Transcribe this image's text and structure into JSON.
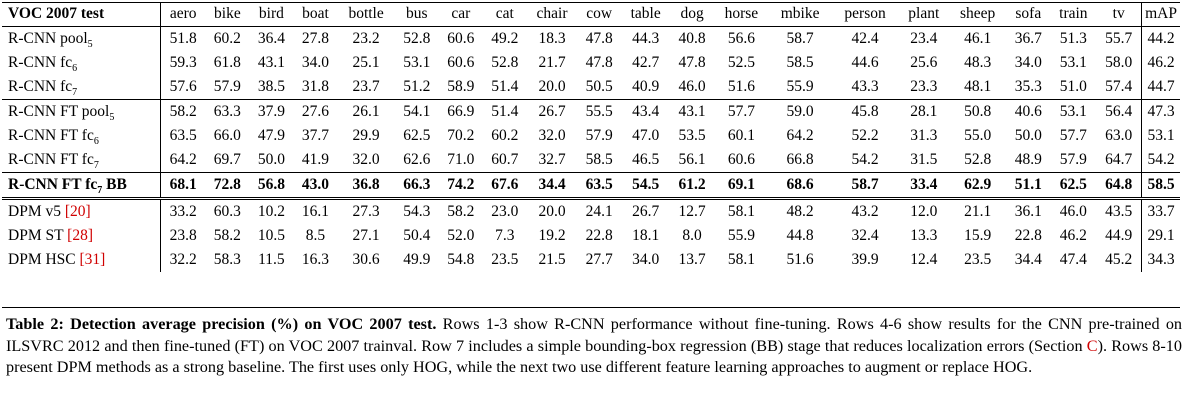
{
  "table": {
    "header_label": "VOC 2007 test",
    "classes": [
      "aero",
      "bike",
      "bird",
      "boat",
      "bottle",
      "bus",
      "car",
      "cat",
      "chair",
      "cow",
      "table",
      "dog",
      "horse",
      "mbike",
      "person",
      "plant",
      "sheep",
      "sofa",
      "train",
      "tv"
    ],
    "map_label": "mAP",
    "rows": [
      {
        "method": "R-CNN pool",
        "sub": "5",
        "suffix": "",
        "ref": "",
        "values": [
          "51.8",
          "60.2",
          "36.4",
          "27.8",
          "23.2",
          "52.8",
          "60.6",
          "49.2",
          "18.3",
          "47.8",
          "44.3",
          "40.8",
          "56.6",
          "58.7",
          "42.4",
          "23.4",
          "46.1",
          "36.7",
          "51.3",
          "55.7"
        ],
        "map": "44.2",
        "style": ""
      },
      {
        "method": "R-CNN fc",
        "sub": "6",
        "suffix": "",
        "ref": "",
        "values": [
          "59.3",
          "61.8",
          "43.1",
          "34.0",
          "25.1",
          "53.1",
          "60.6",
          "52.8",
          "21.7",
          "47.8",
          "42.7",
          "47.8",
          "52.5",
          "58.5",
          "44.6",
          "25.6",
          "48.3",
          "34.0",
          "53.1",
          "58.0"
        ],
        "map": "46.2",
        "style": ""
      },
      {
        "method": "R-CNN fc",
        "sub": "7",
        "suffix": "",
        "ref": "",
        "values": [
          "57.6",
          "57.9",
          "38.5",
          "31.8",
          "23.7",
          "51.2",
          "58.9",
          "51.4",
          "20.0",
          "50.5",
          "40.9",
          "46.0",
          "51.6",
          "55.9",
          "43.3",
          "23.3",
          "48.1",
          "35.3",
          "51.0",
          "57.4"
        ],
        "map": "44.7",
        "style": "group-end"
      },
      {
        "method": "R-CNN FT pool",
        "sub": "5",
        "suffix": "",
        "ref": "",
        "values": [
          "58.2",
          "63.3",
          "37.9",
          "27.6",
          "26.1",
          "54.1",
          "66.9",
          "51.4",
          "26.7",
          "55.5",
          "43.4",
          "43.1",
          "57.7",
          "59.0",
          "45.8",
          "28.1",
          "50.8",
          "40.6",
          "53.1",
          "56.4"
        ],
        "map": "47.3",
        "style": ""
      },
      {
        "method": "R-CNN FT fc",
        "sub": "6",
        "suffix": "",
        "ref": "",
        "values": [
          "63.5",
          "66.0",
          "47.9",
          "37.7",
          "29.9",
          "62.5",
          "70.2",
          "60.2",
          "32.0",
          "57.9",
          "47.0",
          "53.5",
          "60.1",
          "64.2",
          "52.2",
          "31.3",
          "55.0",
          "50.0",
          "57.7",
          "63.0"
        ],
        "map": "53.1",
        "style": ""
      },
      {
        "method": "R-CNN FT fc",
        "sub": "7",
        "suffix": "",
        "ref": "",
        "values": [
          "64.2",
          "69.7",
          "50.0",
          "41.9",
          "32.0",
          "62.6",
          "71.0",
          "60.7",
          "32.7",
          "58.5",
          "46.5",
          "56.1",
          "60.6",
          "66.8",
          "54.2",
          "31.5",
          "52.8",
          "48.9",
          "57.9",
          "64.7"
        ],
        "map": "54.2",
        "style": "group-end"
      },
      {
        "method": "R-CNN FT fc",
        "sub": "7",
        "suffix": " BB",
        "ref": "",
        "values": [
          "68.1",
          "72.8",
          "56.8",
          "43.0",
          "36.8",
          "66.3",
          "74.2",
          "67.6",
          "34.4",
          "63.5",
          "54.5",
          "61.2",
          "69.1",
          "68.6",
          "58.7",
          "33.4",
          "62.9",
          "51.1",
          "62.5",
          "64.8"
        ],
        "map": "58.5",
        "style": "bold"
      },
      {
        "method": "DPM v5 ",
        "sub": "",
        "suffix": "",
        "ref": "[20]",
        "values": [
          "33.2",
          "60.3",
          "10.2",
          "16.1",
          "27.3",
          "54.3",
          "58.2",
          "23.0",
          "20.0",
          "24.1",
          "26.7",
          "12.7",
          "58.1",
          "48.2",
          "43.2",
          "12.0",
          "21.1",
          "36.1",
          "46.0",
          "43.5"
        ],
        "map": "33.7",
        "style": "double-top"
      },
      {
        "method": "DPM ST ",
        "sub": "",
        "suffix": "",
        "ref": "[28]",
        "values": [
          "23.8",
          "58.2",
          "10.5",
          "8.5",
          "27.1",
          "50.4",
          "52.0",
          "7.3",
          "19.2",
          "22.8",
          "18.1",
          "8.0",
          "55.9",
          "44.8",
          "32.4",
          "13.3",
          "15.9",
          "22.8",
          "46.2",
          "44.9"
        ],
        "map": "29.1",
        "style": ""
      },
      {
        "method": "DPM HSC ",
        "sub": "",
        "suffix": "",
        "ref": "[31]",
        "values": [
          "32.2",
          "58.3",
          "11.5",
          "16.3",
          "30.6",
          "49.9",
          "54.8",
          "23.5",
          "21.5",
          "27.7",
          "34.0",
          "13.7",
          "58.1",
          "51.6",
          "39.9",
          "12.4",
          "23.5",
          "34.4",
          "47.4",
          "45.2"
        ],
        "map": "34.3",
        "style": ""
      }
    ]
  },
  "caption": {
    "lead": "Table 2: Detection average precision (%) on VOC 2007 test.",
    "text_before_link": " Rows 1-3 show R-CNN performance without fine-tuning. Rows 4-6 show results for the CNN pre-trained on ILSVRC 2012 and then fine-tuned (FT) on VOC 2007 trainval. Row 7 includes a simple bounding-box regression (BB) stage that reduces localization errors (Section ",
    "link": "C",
    "text_after_link": "). Rows 8-10 present DPM methods as a strong baseline. The first uses only HOG, while the next two use different feature learning approaches to augment or replace HOG."
  },
  "colors": {
    "link": "#d00000",
    "text": "#000000"
  }
}
